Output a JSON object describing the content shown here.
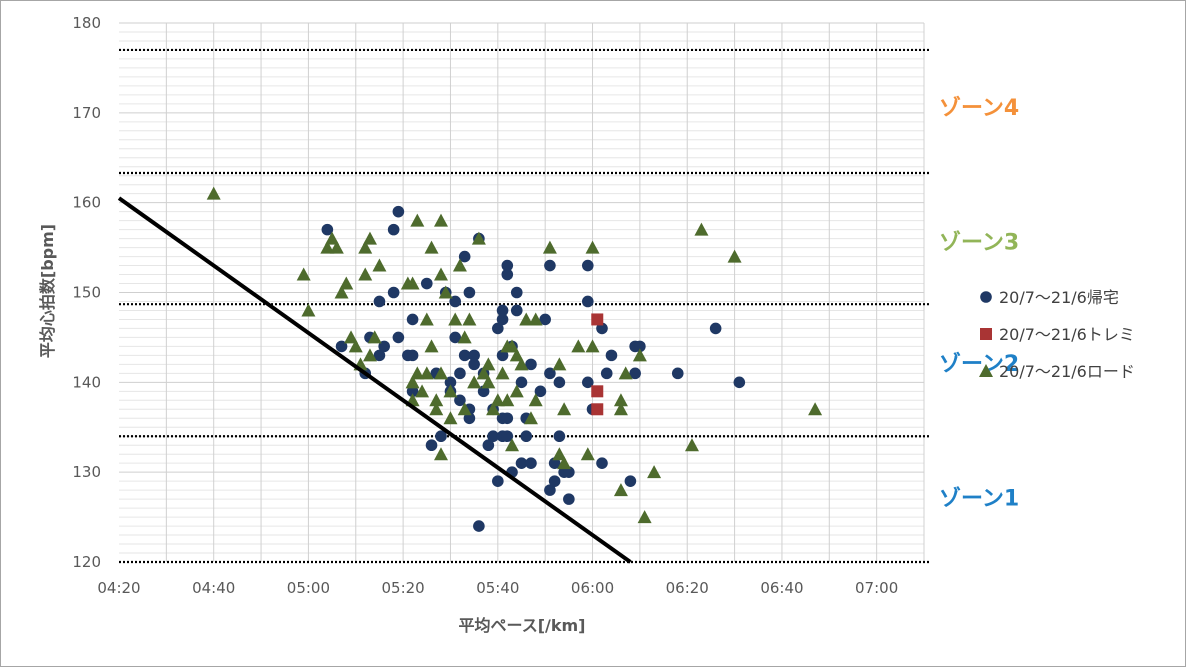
{
  "chart_data": {
    "type": "scatter",
    "title": "",
    "xlabel": "平均ペース[/km]",
    "ylabel": "平均心拍数[bpm]",
    "xlim": [
      "04:20",
      "07:10"
    ],
    "ylim": [
      120,
      180
    ],
    "x_ticks": [
      "04:20",
      "04:40",
      "05:00",
      "05:20",
      "05:40",
      "06:00",
      "06:20",
      "06:40",
      "07:00"
    ],
    "y_ticks": [
      "120",
      "130",
      "140",
      "150",
      "160",
      "170",
      "180"
    ],
    "grid": true,
    "legend_position": "right",
    "zone_lines_bpm": [
      120,
      134,
      148.7,
      163.3,
      177
    ],
    "zones": [
      {
        "label": "ゾーン4",
        "color": "#f4913a"
      },
      {
        "label": "ゾーン3",
        "color": "#92b558"
      },
      {
        "label": "ゾーン2",
        "color": "#1f80c7"
      },
      {
        "label": "ゾーン1",
        "color": "#1f80c7"
      }
    ],
    "trend_line": {
      "x": [
        "04:20",
        "06:08"
      ],
      "y": [
        160.5,
        120
      ]
    },
    "series": [
      {
        "name": "20/7～21/6帰宅",
        "marker": "circle",
        "color": "#1f3864",
        "points": [
          [
            "05:04",
            157
          ],
          [
            "05:07",
            144
          ],
          [
            "05:12",
            141
          ],
          [
            "05:13",
            145
          ],
          [
            "05:15",
            149
          ],
          [
            "05:15",
            143
          ],
          [
            "05:16",
            144
          ],
          [
            "05:18",
            150
          ],
          [
            "05:18",
            157
          ],
          [
            "05:19",
            159
          ],
          [
            "05:19",
            145
          ],
          [
            "05:21",
            143
          ],
          [
            "05:22",
            147
          ],
          [
            "05:22",
            143
          ],
          [
            "05:22",
            139
          ],
          [
            "05:25",
            151
          ],
          [
            "05:26",
            133
          ],
          [
            "05:27",
            141
          ],
          [
            "05:28",
            134
          ],
          [
            "05:29",
            150
          ],
          [
            "05:30",
            140
          ],
          [
            "05:30",
            139
          ],
          [
            "05:31",
            149
          ],
          [
            "05:31",
            145
          ],
          [
            "05:32",
            138
          ],
          [
            "05:32",
            141
          ],
          [
            "05:33",
            154
          ],
          [
            "05:33",
            143
          ],
          [
            "05:34",
            150
          ],
          [
            "05:34",
            136
          ],
          [
            "05:34",
            137
          ],
          [
            "05:35",
            142
          ],
          [
            "05:35",
            143
          ],
          [
            "05:36",
            156
          ],
          [
            "05:36",
            124
          ],
          [
            "05:37",
            141
          ],
          [
            "05:37",
            139
          ],
          [
            "05:38",
            133
          ],
          [
            "05:39",
            134
          ],
          [
            "05:39",
            137
          ],
          [
            "05:40",
            146
          ],
          [
            "05:40",
            129
          ],
          [
            "05:41",
            148
          ],
          [
            "05:41",
            147
          ],
          [
            "05:41",
            136
          ],
          [
            "05:41",
            134
          ],
          [
            "05:41",
            143
          ],
          [
            "05:42",
            152
          ],
          [
            "05:42",
            153
          ],
          [
            "05:42",
            136
          ],
          [
            "05:42",
            134
          ],
          [
            "05:43",
            144
          ],
          [
            "05:43",
            130
          ],
          [
            "05:44",
            150
          ],
          [
            "05:44",
            148
          ],
          [
            "05:45",
            131
          ],
          [
            "05:45",
            140
          ],
          [
            "05:46",
            136
          ],
          [
            "05:46",
            134
          ],
          [
            "05:47",
            142
          ],
          [
            "05:47",
            131
          ],
          [
            "05:49",
            139
          ],
          [
            "05:50",
            147
          ],
          [
            "05:51",
            128
          ],
          [
            "05:51",
            153
          ],
          [
            "05:51",
            141
          ],
          [
            "05:52",
            131
          ],
          [
            "05:52",
            129
          ],
          [
            "05:53",
            140
          ],
          [
            "05:53",
            134
          ],
          [
            "05:54",
            130
          ],
          [
            "05:55",
            130
          ],
          [
            "05:55",
            127
          ],
          [
            "05:59",
            153
          ],
          [
            "05:59",
            149
          ],
          [
            "05:59",
            140
          ],
          [
            "06:00",
            137
          ],
          [
            "06:02",
            131
          ],
          [
            "06:02",
            146
          ],
          [
            "06:03",
            141
          ],
          [
            "06:04",
            143
          ],
          [
            "06:08",
            129
          ],
          [
            "06:09",
            144
          ],
          [
            "06:09",
            141
          ],
          [
            "06:10",
            144
          ],
          [
            "06:18",
            141
          ],
          [
            "06:26",
            146
          ],
          [
            "06:31",
            140
          ]
        ]
      },
      {
        "name": "20/7～21/6トレミ",
        "marker": "square",
        "color": "#a93434",
        "points": [
          [
            "06:01",
            147
          ],
          [
            "06:01",
            139
          ],
          [
            "06:01",
            137
          ]
        ]
      },
      {
        "name": "20/7～21/6ロード",
        "marker": "triangle",
        "color": "#4e6b2d",
        "points": [
          [
            "04:40",
            161
          ],
          [
            "04:59",
            152
          ],
          [
            "05:00",
            148
          ],
          [
            "05:04",
            155
          ],
          [
            "05:05",
            156
          ],
          [
            "05:06",
            155
          ],
          [
            "05:07",
            150
          ],
          [
            "05:08",
            151
          ],
          [
            "05:09",
            145
          ],
          [
            "05:10",
            144
          ],
          [
            "05:11",
            142
          ],
          [
            "05:12",
            152
          ],
          [
            "05:12",
            155
          ],
          [
            "05:13",
            156
          ],
          [
            "05:13",
            143
          ],
          [
            "05:14",
            145
          ],
          [
            "05:15",
            153
          ],
          [
            "05:21",
            151
          ],
          [
            "05:22",
            151
          ],
          [
            "05:22",
            140
          ],
          [
            "05:22",
            138
          ],
          [
            "05:23",
            158
          ],
          [
            "05:23",
            141
          ],
          [
            "05:24",
            139
          ],
          [
            "05:25",
            147
          ],
          [
            "05:25",
            141
          ],
          [
            "05:26",
            155
          ],
          [
            "05:26",
            144
          ],
          [
            "05:27",
            138
          ],
          [
            "05:27",
            137
          ],
          [
            "05:28",
            152
          ],
          [
            "05:28",
            158
          ],
          [
            "05:28",
            141
          ],
          [
            "05:28",
            132
          ],
          [
            "05:29",
            150
          ],
          [
            "05:30",
            139
          ],
          [
            "05:30",
            136
          ],
          [
            "05:31",
            147
          ],
          [
            "05:32",
            153
          ],
          [
            "05:33",
            145
          ],
          [
            "05:33",
            137
          ],
          [
            "05:34",
            147
          ],
          [
            "05:35",
            140
          ],
          [
            "05:36",
            156
          ],
          [
            "05:37",
            141
          ],
          [
            "05:38",
            142
          ],
          [
            "05:38",
            140
          ],
          [
            "05:39",
            137
          ],
          [
            "05:40",
            138
          ],
          [
            "05:41",
            141
          ],
          [
            "05:42",
            144
          ],
          [
            "05:42",
            138
          ],
          [
            "05:43",
            133
          ],
          [
            "05:43",
            144
          ],
          [
            "05:44",
            143
          ],
          [
            "05:44",
            139
          ],
          [
            "05:45",
            142
          ],
          [
            "05:46",
            147
          ],
          [
            "05:47",
            136
          ],
          [
            "05:48",
            147
          ],
          [
            "05:48",
            138
          ],
          [
            "05:51",
            155
          ],
          [
            "05:53",
            142
          ],
          [
            "05:53",
            132
          ],
          [
            "05:54",
            137
          ],
          [
            "05:54",
            131
          ],
          [
            "05:57",
            144
          ],
          [
            "05:59",
            132
          ],
          [
            "06:00",
            155
          ],
          [
            "06:00",
            144
          ],
          [
            "06:06",
            138
          ],
          [
            "06:06",
            137
          ],
          [
            "06:06",
            128
          ],
          [
            "06:07",
            141
          ],
          [
            "06:10",
            143
          ],
          [
            "06:11",
            125
          ],
          [
            "06:13",
            130
          ],
          [
            "06:21",
            133
          ],
          [
            "06:23",
            157
          ],
          [
            "06:30",
            154
          ],
          [
            "06:47",
            137
          ]
        ]
      }
    ]
  }
}
